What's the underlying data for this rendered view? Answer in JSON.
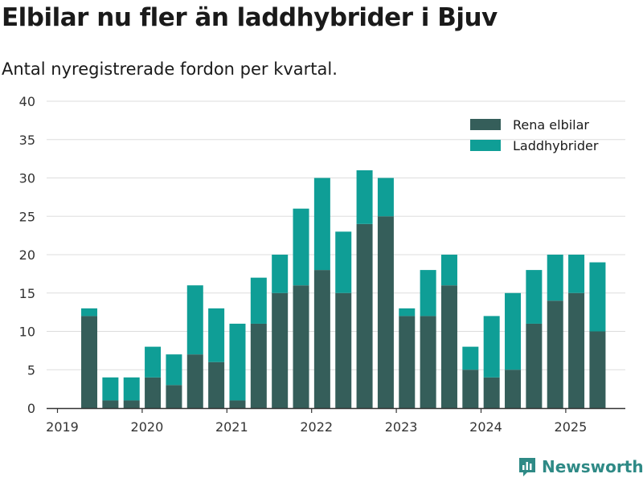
{
  "title": "Elbilar nu fler än laddhybrider i Bjuv",
  "subtitle": "Antal nyregistrerade fordon per kvartal.",
  "brand": "Newsworthy",
  "colors": {
    "elbilar": "#355e5a",
    "laddhybrider": "#0f9e96",
    "grid": "#dddddd",
    "axis": "#333333"
  },
  "chart_data": {
    "type": "bar",
    "stacked": true,
    "x_unit": "quarter",
    "categories": [
      "2019-Q2",
      "2019-Q3",
      "2019-Q4",
      "2020-Q1",
      "2020-Q2",
      "2020-Q3",
      "2020-Q4",
      "2021-Q1",
      "2021-Q2",
      "2021-Q3",
      "2021-Q4",
      "2022-Q1",
      "2022-Q2",
      "2022-Q3",
      "2022-Q4",
      "2023-Q1",
      "2023-Q2",
      "2023-Q3",
      "2023-Q4",
      "2024-Q1",
      "2024-Q2",
      "2024-Q3",
      "2024-Q4",
      "2025-Q1",
      "2025-Q2"
    ],
    "series": [
      {
        "name": "Rena elbilar",
        "color": "#355e5a",
        "values": [
          12,
          1,
          1,
          4,
          3,
          7,
          6,
          1,
          11,
          15,
          16,
          18,
          15,
          24,
          25,
          12,
          12,
          16,
          5,
          4,
          5,
          11,
          14,
          15,
          10
        ]
      },
      {
        "name": "Laddhybrider",
        "color": "#0f9e96",
        "values": [
          1,
          3,
          3,
          4,
          4,
          9,
          7,
          10,
          6,
          5,
          10,
          12,
          8,
          7,
          5,
          1,
          6,
          4,
          3,
          8,
          10,
          7,
          6,
          5,
          9
        ]
      }
    ],
    "ylim": [
      0,
      40
    ],
    "yticks": [
      0,
      5,
      10,
      15,
      20,
      25,
      30,
      35,
      40
    ],
    "xticks": [
      "2019",
      "2020",
      "2021",
      "2022",
      "2023",
      "2024",
      "2025"
    ],
    "grid": true,
    "legend_position": "top-right"
  }
}
